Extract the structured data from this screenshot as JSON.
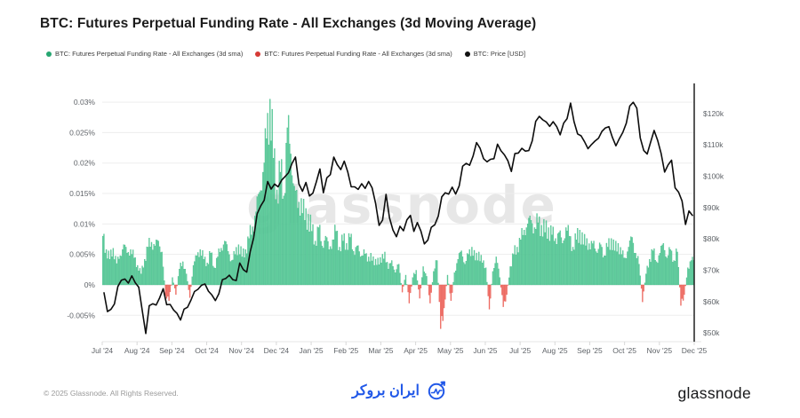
{
  "title": "BTC: Futures Perpetual Funding Rate - All Exchanges (3d Moving Average)",
  "legend": {
    "items": [
      {
        "label": "BTC: Futures Perpetual Funding Rate - All Exchanges (3d sma)",
        "color": "#26a671"
      },
      {
        "label": "BTC: Futures Perpetual Funding Rate - All Exchanges (3d sma)",
        "color": "#d63a36"
      },
      {
        "label": "BTC: Price [USD]",
        "color": "#111111"
      }
    ]
  },
  "watermark": "glassnode",
  "footer": {
    "copyright": "© 2025 Glassnode. All Rights Reserved.",
    "center_logo_text": "ایران بروکر",
    "brand": "glassnode"
  },
  "chart_data": {
    "type": "bar+line",
    "title": "BTC: Futures Perpetual Funding Rate - All Exchanges (3d Moving Average)",
    "grid": "horizontal",
    "legend_position": "top-left",
    "x_tick_labels": [
      "Jul '24",
      "Aug '24",
      "Sep '24",
      "Oct '24",
      "Nov '24",
      "Dec '24",
      "Jan '25",
      "Feb '25",
      "Mar '25",
      "Apr '25",
      "May '25",
      "Jun '25",
      "Jul '25",
      "Aug '25",
      "Sep '25",
      "Oct '25",
      "Nov '25",
      "Dec '25"
    ],
    "left_axis": {
      "unit": "%",
      "tick_labels": [
        "0.03%",
        "0.025%",
        "0.02%",
        "0.015%",
        "0.01%",
        "0.005%",
        "0%",
        "-0.005%"
      ],
      "tick_values": [
        0.03,
        0.025,
        0.02,
        0.015,
        0.01,
        0.005,
        0,
        -0.005
      ],
      "min": -0.00933,
      "max": 0.0322
    },
    "right_axis": {
      "unit": "USD thousands",
      "tick_labels": [
        "$120k",
        "$110k",
        "$100k",
        "$90k",
        "$80k",
        "$70k",
        "$60k",
        "$50k"
      ],
      "tick_values": [
        120,
        110,
        100,
        90,
        80,
        70,
        60,
        50
      ],
      "min": 47.2,
      "max": 127.9
    },
    "series": [
      {
        "name": "BTC: Futures Perpetual Funding Rate - All Exchanges (3d sma)",
        "type": "bar",
        "axis": "left",
        "positive_color": "#68d2a1",
        "positive_edge": "#39b583",
        "negative_color": "#f4756c",
        "negative_edge": "#e2524a",
        "values_pct": [
          0.008,
          0.0058,
          0.0042,
          0.006,
          0.0035,
          0.0048,
          0.0066,
          0.0052,
          0.0058,
          0.0044,
          0.0032,
          0.0018,
          0.0042,
          0.0062,
          0.007,
          0.0064,
          0.0072,
          0.0054,
          -0.0018,
          -0.0026,
          0.0012,
          -0.0016,
          0.0026,
          0.0038,
          0.0018,
          -0.0021,
          0.0032,
          0.0048,
          0.0058,
          0.0042,
          0.0036,
          0.0052,
          0.0028,
          0.0046,
          0.006,
          0.0072,
          0.0055,
          0.004,
          0.005,
          0.0066,
          0.0046,
          0.0058,
          0.0076,
          0.0095,
          0.012,
          0.0152,
          0.0185,
          0.024,
          0.0305,
          0.0208,
          0.0156,
          0.0185,
          0.0146,
          0.0258,
          0.0215,
          0.0162,
          0.0126,
          0.0142,
          0.0106,
          0.0116,
          0.0088,
          0.0072,
          0.0094,
          0.0064,
          0.008,
          0.0058,
          0.0074,
          0.0088,
          0.0062,
          0.0072,
          0.0068,
          0.0078,
          0.0055,
          0.0064,
          0.0046,
          0.0058,
          0.0038,
          0.0052,
          0.0032,
          0.0044,
          0.0036,
          0.0054,
          0.0026,
          0.004,
          0.002,
          0.0034,
          -0.0012,
          0.0016,
          -0.003,
          0.0012,
          0.0024,
          -0.0022,
          0.003,
          0.0014,
          -0.003,
          0.0022,
          0.004,
          -0.0072,
          -0.0038,
          0.0016,
          -0.0026,
          0.002,
          0.0042,
          0.0056,
          0.0034,
          0.005,
          0.0062,
          0.004,
          0.0054,
          0.0036,
          0.0028,
          -0.004,
          0.0022,
          0.0046,
          0.0012,
          -0.0036,
          -0.0016,
          0.003,
          0.005,
          0.0062,
          0.0074,
          0.009,
          0.01,
          0.0106,
          0.0094,
          0.0102,
          0.0098,
          0.0086,
          0.0094,
          0.0082,
          0.0076,
          0.0086,
          0.0068,
          0.0094,
          0.008,
          0.0062,
          0.0074,
          0.009,
          0.0066,
          0.0076,
          0.0058,
          0.0072,
          0.0052,
          0.0066,
          0.0048,
          0.0062,
          0.0076,
          0.0056,
          0.0068,
          0.005,
          0.0044,
          0.0062,
          0.0078,
          0.0052,
          0.0034,
          -0.0028,
          0.0018,
          0.0042,
          0.0056,
          0.0038,
          0.0052,
          0.0068,
          0.0044,
          0.0058,
          0.004,
          0.0054,
          -0.0034,
          -0.0016,
          0.0028,
          0.004
        ]
      },
      {
        "name": "BTC: Price [USD]",
        "type": "line",
        "axis": "right",
        "color": "#0d0d0d",
        "values_usd_k": [
          62.8,
          56.8,
          57.5,
          59.2,
          64.8,
          66.8,
          67.2,
          65.9,
          68.2,
          66,
          64.6,
          57,
          49.8,
          58.7,
          59.3,
          58.9,
          61.2,
          64.1,
          59,
          59.1,
          57.3,
          56.2,
          54.1,
          57.6,
          58.2,
          60.5,
          63.2,
          63.9,
          65.2,
          65.6,
          63.3,
          62.1,
          60.3,
          62.5,
          67,
          67.4,
          68.4,
          67,
          66.7,
          72.3,
          70.2,
          69.4,
          75.9,
          80.4,
          88,
          90.5,
          92.3,
          98.3,
          95.9,
          97.5,
          96.6,
          98.7,
          99.9,
          101.1,
          104.1,
          106.1,
          97.5,
          95.2,
          98,
          93.7,
          94.6,
          98.2,
          102.3,
          94.7,
          99.5,
          100.5,
          106.1,
          103.7,
          102.1,
          104.8,
          101.4,
          96.6,
          96.6,
          95.8,
          97.6,
          96.1,
          98.3,
          96.3,
          91.4,
          84.3,
          86,
          94.2,
          86.7,
          82.8,
          80.7,
          84,
          82.6,
          86.1,
          87.5,
          82.4,
          85.2,
          82.5,
          78.4,
          79.6,
          83.7,
          84.5,
          87.3,
          93.4,
          94.7,
          94.3,
          96.5,
          94.3,
          96.9,
          103.2,
          104.1,
          103.5,
          106.4,
          110.7,
          108.9,
          105.6,
          104.6,
          105.4,
          105.6,
          110.2,
          108.1,
          106.8,
          104.9,
          101.5,
          107.2,
          107.4,
          108.9,
          108,
          108.2,
          111.3,
          117.5,
          119.1,
          118,
          117.3,
          115.9,
          117.4,
          115.8,
          113.2,
          116.9,
          118.4,
          123.3,
          117.4,
          113.5,
          112.9,
          111,
          108.8,
          110.1,
          111.2,
          112.1,
          114.3,
          115.4,
          115.8,
          112.4,
          109.7,
          112,
          114,
          116.9,
          122.4,
          123.6,
          121.7,
          112.2,
          108.2,
          107.1,
          110.9,
          114.6,
          111.4,
          107.2,
          101.3,
          103.6,
          105.1,
          96.3,
          94.9,
          92.1,
          84.6,
          88.9,
          87.5
        ]
      }
    ]
  }
}
